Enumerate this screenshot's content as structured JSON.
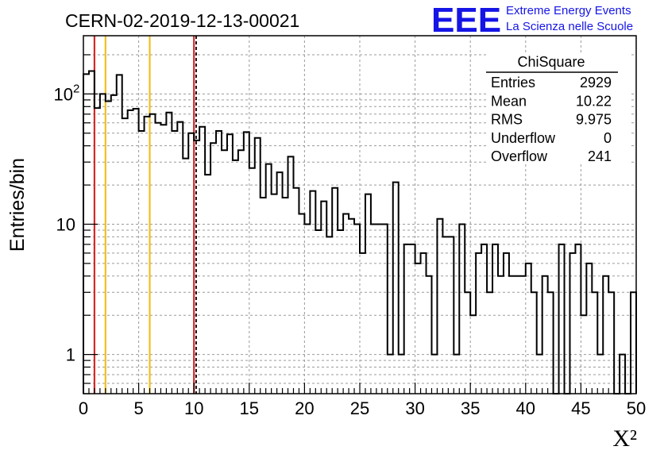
{
  "chart_data": {
    "type": "histogram",
    "title": "CERN-02-2019-12-13-00021",
    "xlabel": "X²",
    "ylabel": "Entries/bin",
    "xlim": [
      0,
      50
    ],
    "ylim": [
      0.5,
      280
    ],
    "yscale": "log",
    "grid": true,
    "bin_width": 0.5,
    "x_ticks": [
      0,
      5,
      10,
      15,
      20,
      25,
      30,
      35,
      40,
      45,
      50
    ],
    "y_ticks": [
      {
        "value": 1,
        "label": "1"
      },
      {
        "value": 10,
        "label": "10"
      },
      {
        "value": 100,
        "label": "10",
        "exponent": "2"
      }
    ],
    "values": [
      142,
      150,
      78,
      100,
      88,
      98,
      140,
      65,
      75,
      77,
      52,
      67,
      70,
      60,
      58,
      72,
      52,
      61,
      32,
      50,
      44,
      56,
      24,
      42,
      52,
      37,
      49,
      31,
      37,
      51,
      27,
      46,
      16,
      29,
      17,
      25,
      16,
      33,
      19,
      12,
      10,
      18,
      9,
      15,
      8,
      19,
      9,
      12,
      11,
      10,
      6,
      17,
      10,
      10,
      10,
      1,
      21,
      1,
      7,
      7,
      5,
      6,
      4,
      1,
      11,
      8,
      8,
      1,
      10,
      3,
      2,
      6,
      7,
      3,
      7,
      4,
      6,
      4,
      4,
      4,
      5,
      3,
      1,
      4,
      3,
      0,
      7,
      0,
      6,
      7,
      2,
      5,
      3,
      1,
      4,
      3,
      0,
      1,
      0,
      3
    ],
    "vertical_lines": [
      {
        "x": 1,
        "color": "#d62728",
        "style": "solid"
      },
      {
        "x": 2,
        "color": "#f0c020",
        "style": "solid"
      },
      {
        "x": 6,
        "color": "#f0c020",
        "style": "solid"
      },
      {
        "x": 10,
        "color": "#d62728",
        "style": "solid"
      },
      {
        "x": 10.2,
        "color": "#000000",
        "style": "dashed"
      }
    ],
    "stats_box": {
      "title": "ChiSquare",
      "rows": [
        {
          "label": "Entries",
          "value": "2929"
        },
        {
          "label": "Mean",
          "value": "10.22"
        },
        {
          "label": "RMS",
          "value": "9.975"
        },
        {
          "label": "Underflow",
          "value": "0"
        },
        {
          "label": "Overflow",
          "value": "241"
        }
      ]
    }
  },
  "logo": {
    "mark": "EEE",
    "line1": "Extreme Energy Events",
    "line2": "La Scienza nelle Scuole",
    "color": "#1515e6"
  }
}
